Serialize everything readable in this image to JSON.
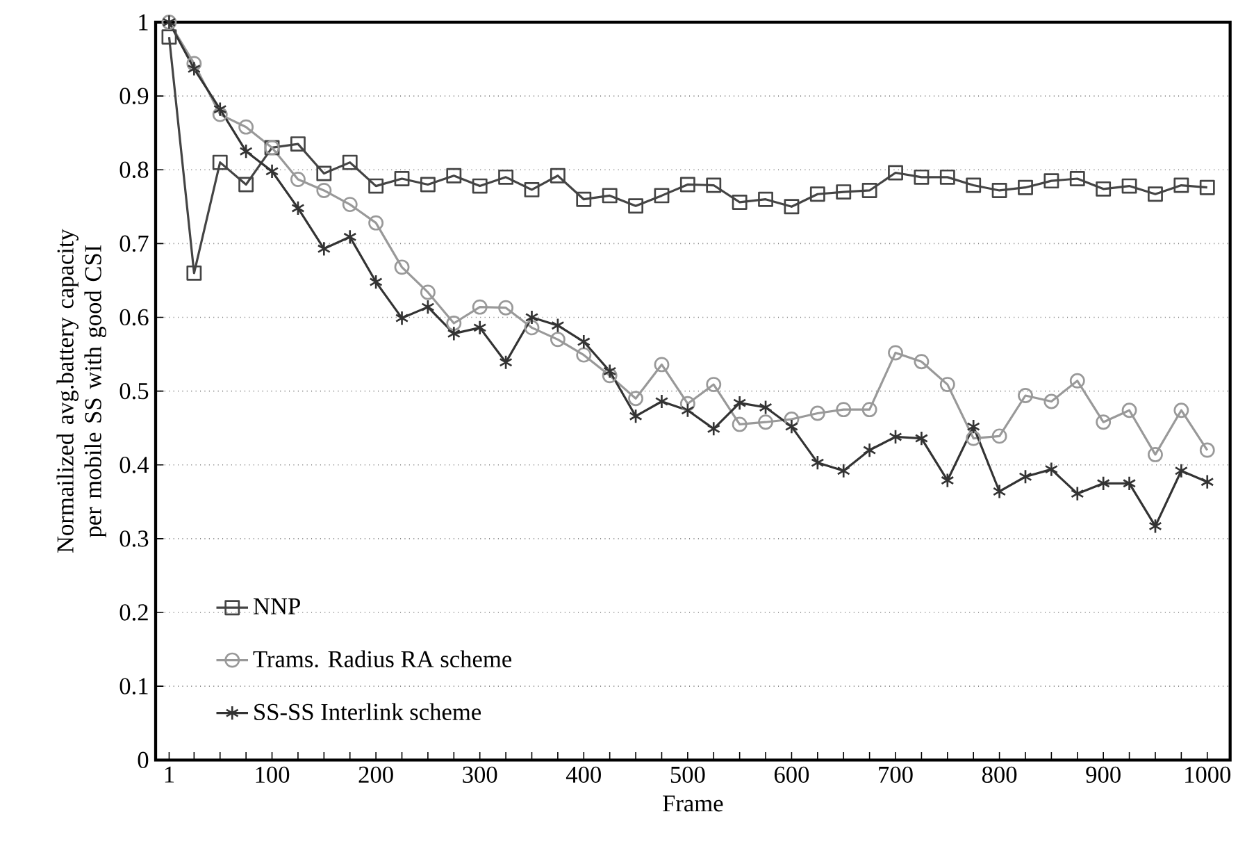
{
  "chart_data": {
    "type": "line",
    "xlabel": "Frame",
    "ylabel": "Normailized avg.battery capacity per mobile SS with good CSI",
    "x": [
      1,
      25,
      50,
      75,
      100,
      125,
      150,
      175,
      200,
      225,
      250,
      275,
      300,
      325,
      350,
      375,
      400,
      425,
      450,
      475,
      500,
      525,
      550,
      575,
      600,
      625,
      650,
      675,
      700,
      725,
      750,
      775,
      800,
      825,
      850,
      875,
      900,
      925,
      950,
      975,
      1000
    ],
    "series": [
      {
        "name": "NNP",
        "color": "#444444",
        "marker": "square",
        "values": [
          0.98,
          0.66,
          0.81,
          0.78,
          0.83,
          0.835,
          0.795,
          0.81,
          0.778,
          0.788,
          0.78,
          0.792,
          0.778,
          0.79,
          0.773,
          0.792,
          0.76,
          0.765,
          0.751,
          0.765,
          0.78,
          0.779,
          0.756,
          0.76,
          0.75,
          0.767,
          0.77,
          0.772,
          0.796,
          0.79,
          0.79,
          0.779,
          0.772,
          0.776,
          0.785,
          0.788,
          0.774,
          0.778,
          0.767,
          0.779,
          0.776
        ]
      },
      {
        "name": "Trams. Radius RA scheme",
        "color": "#999999",
        "marker": "circle",
        "values": [
          1.0,
          0.944,
          0.875,
          0.858,
          0.83,
          0.787,
          0.772,
          0.753,
          0.728,
          0.668,
          0.634,
          0.592,
          0.614,
          0.613,
          0.586,
          0.57,
          0.549,
          0.521,
          0.49,
          0.536,
          0.483,
          0.509,
          0.455,
          0.458,
          0.462,
          0.47,
          0.475,
          0.475,
          0.552,
          0.54,
          0.509,
          0.436,
          0.439,
          0.494,
          0.486,
          0.514,
          0.458,
          0.474,
          0.414,
          0.474,
          0.42
        ]
      },
      {
        "name": "SS-SS  Interlink  scheme",
        "color": "#333333",
        "marker": "cross",
        "values": [
          1.0,
          0.937,
          0.882,
          0.825,
          0.798,
          0.748,
          0.693,
          0.709,
          0.648,
          0.599,
          0.614,
          0.578,
          0.586,
          0.539,
          0.6,
          0.589,
          0.567,
          0.527,
          0.466,
          0.486,
          0.474,
          0.449,
          0.484,
          0.478,
          0.452,
          0.403,
          0.392,
          0.42,
          0.438,
          0.436,
          0.379,
          0.452,
          0.364,
          0.384,
          0.394,
          0.361,
          0.375,
          0.375,
          0.317,
          0.392,
          0.377
        ]
      }
    ],
    "xlim": [
      -12,
      1022
    ],
    "xticks": [
      1,
      {
        "value": 25,
        "label": null
      },
      {
        "value": 50,
        "label": null
      },
      {
        "value": 75,
        "label": null
      },
      100,
      {
        "value": 125,
        "label": null
      },
      {
        "value": 150,
        "label": null
      },
      {
        "value": 175,
        "label": null
      },
      200,
      {
        "value": 225,
        "label": null
      },
      {
        "value": 250,
        "label": null
      },
      {
        "value": 275,
        "label": null
      },
      300,
      {
        "value": 325,
        "label": null
      },
      {
        "value": 350,
        "label": null
      },
      {
        "value": 375,
        "label": null
      },
      400,
      {
        "value": 425,
        "label": null
      },
      {
        "value": 450,
        "label": null
      },
      {
        "value": 475,
        "label": null
      },
      500,
      {
        "value": 525,
        "label": null
      },
      {
        "value": 550,
        "label": null
      },
      {
        "value": 575,
        "label": null
      },
      600,
      {
        "value": 625,
        "label": null
      },
      {
        "value": 650,
        "label": null
      },
      {
        "value": 675,
        "label": null
      },
      700,
      {
        "value": 725,
        "label": null
      },
      {
        "value": 750,
        "label": null
      },
      {
        "value": 775,
        "label": null
      },
      800,
      {
        "value": 825,
        "label": null
      },
      {
        "value": 850,
        "label": null
      },
      {
        "value": 875,
        "label": null
      },
      900,
      {
        "value": 925,
        "label": null
      },
      {
        "value": 950,
        "label": null
      },
      {
        "value": 975,
        "label": null
      },
      1000
    ],
    "ylim": [
      0,
      1
    ],
    "yticks": [
      0,
      0.1,
      0.2,
      0.3,
      0.4,
      0.5,
      0.6,
      0.7,
      0.8,
      0.9,
      1
    ],
    "grid": "y",
    "legend": "bottom left",
    "line_style": "solid"
  }
}
